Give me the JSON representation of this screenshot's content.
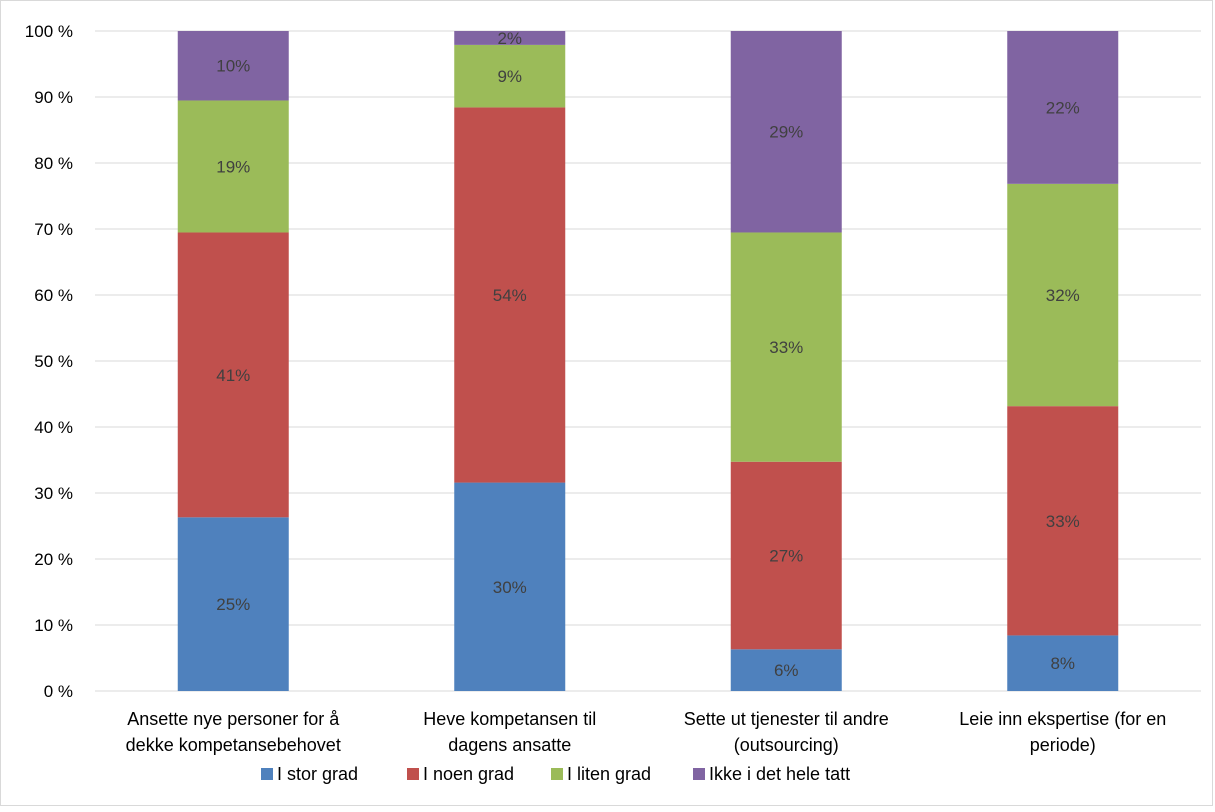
{
  "chart_data": {
    "type": "bar",
    "stacked": true,
    "percent_stacked": true,
    "categories": [
      [
        "Ansette nye personer for å",
        "dekke kompetansebehovet"
      ],
      [
        "Heve kompetansen til",
        "dagens ansatte"
      ],
      [
        "Sette ut tjenester til andre",
        "(outsourcing)"
      ],
      [
        "Leie inn ekspertise (for en",
        "periode)"
      ]
    ],
    "series": [
      {
        "name": "I stor grad",
        "color": "#4F81BD",
        "values": [
          25,
          30,
          6,
          8
        ],
        "labels": [
          "25%",
          "30%",
          "6%",
          "8%"
        ]
      },
      {
        "name": "I noen grad",
        "color": "#C0504D",
        "values": [
          41,
          54,
          27,
          33
        ],
        "labels": [
          "41%",
          "54%",
          "27%",
          "33%"
        ]
      },
      {
        "name": "I liten grad",
        "color": "#9BBB59",
        "values": [
          19,
          9,
          33,
          32
        ],
        "labels": [
          "19%",
          "9%",
          "33%",
          "32%"
        ]
      },
      {
        "name": "Ikke i det hele tatt",
        "color": "#8064A2",
        "values": [
          10,
          2,
          29,
          22
        ],
        "labels": [
          "10%",
          "2%",
          "29%",
          "22%"
        ]
      }
    ],
    "y_ticks": [
      "0 %",
      "10 %",
      "20 %",
      "30 %",
      "40 %",
      "50 %",
      "60 %",
      "70 %",
      "80 %",
      "90 %",
      "100 %"
    ],
    "ylim": [
      0,
      100
    ],
    "grid": true,
    "legend_position": "bottom",
    "title": "",
    "xlabel": "",
    "ylabel": ""
  }
}
